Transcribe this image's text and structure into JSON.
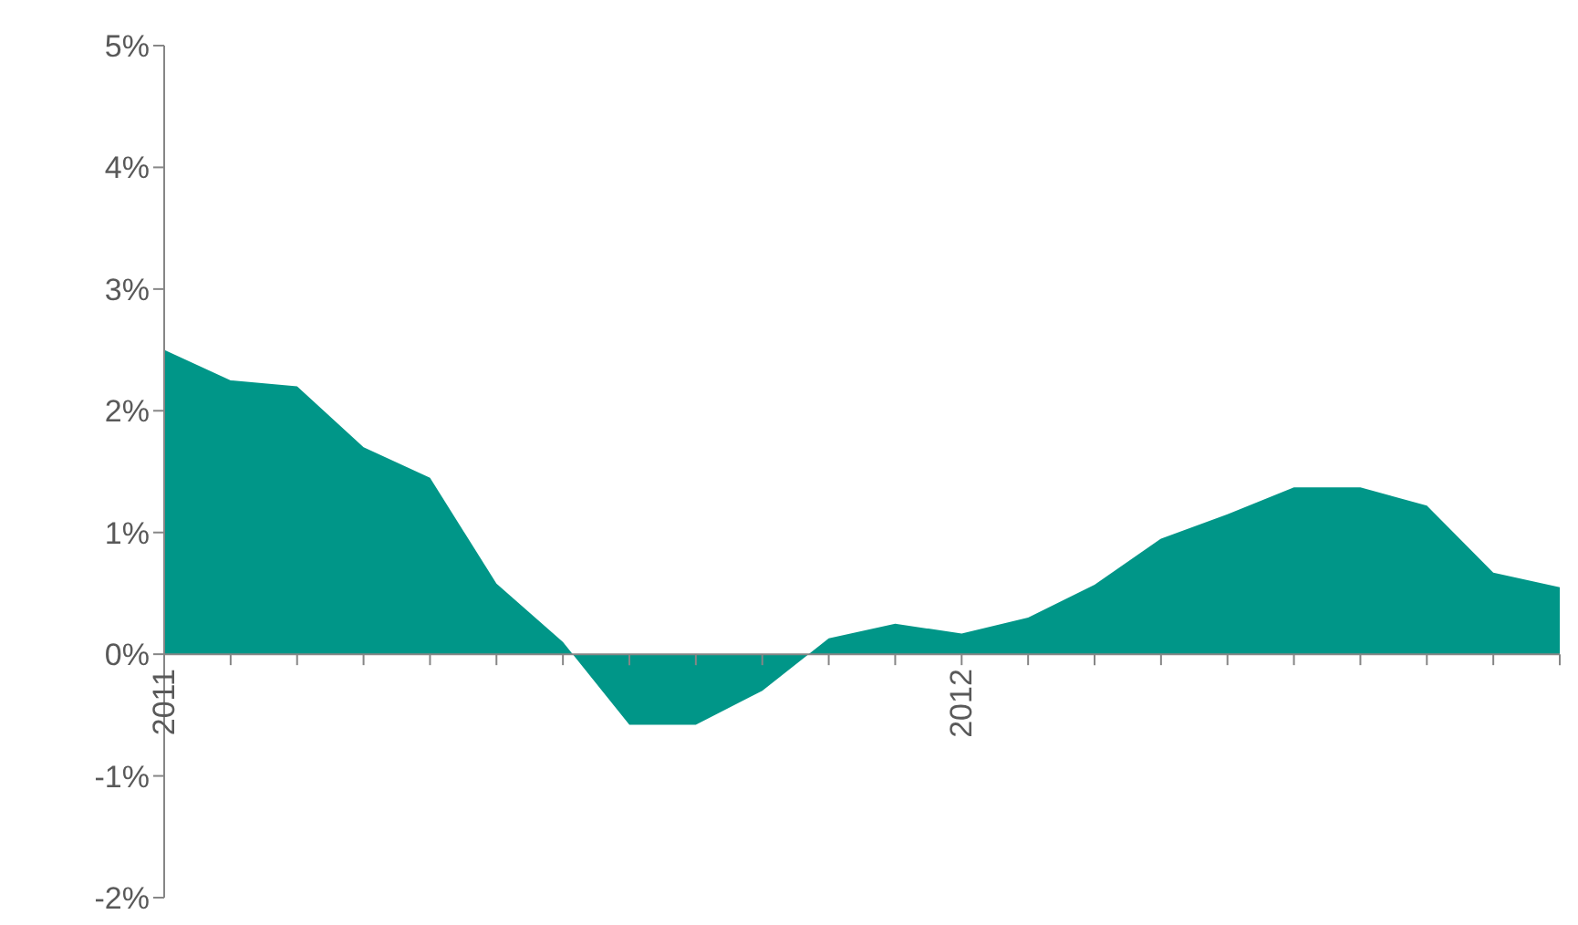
{
  "chart_data": {
    "type": "area",
    "x": [
      "2011-01",
      "2011-02",
      "2011-03",
      "2011-04",
      "2011-05",
      "2011-06",
      "2011-07",
      "2011-08",
      "2011-09",
      "2011-10",
      "2011-11",
      "2011-12",
      "2012-01",
      "2012-02",
      "2012-03",
      "2012-04",
      "2012-05",
      "2012-06",
      "2012-07",
      "2012-08",
      "2012-09",
      "2012-10"
    ],
    "series": [
      {
        "color": "#009688",
        "values": [
          2.5,
          2.25,
          2.2,
          1.7,
          1.45,
          0.58,
          0.1,
          -0.58,
          -0.58,
          -0.3,
          0.13,
          0.25,
          0.17,
          0.3,
          0.57,
          0.95,
          1.15,
          1.37,
          1.37,
          1.22,
          0.67,
          0.55
        ]
      }
    ],
    "xlim": [
      "2011-01",
      "2012-10"
    ],
    "xticks": [
      {
        "value": "2011-01",
        "label": "2011"
      },
      {
        "value": "2011-02",
        "label": null
      },
      {
        "value": "2011-03",
        "label": null
      },
      {
        "value": "2011-04",
        "label": null
      },
      {
        "value": "2011-05",
        "label": null
      },
      {
        "value": "2011-06",
        "label": null
      },
      {
        "value": "2011-07",
        "label": null
      },
      {
        "value": "2011-08",
        "label": null
      },
      {
        "value": "2011-09",
        "label": null
      },
      {
        "value": "2011-10",
        "label": null
      },
      {
        "value": "2011-11",
        "label": null
      },
      {
        "value": "2011-12",
        "label": null
      },
      {
        "value": "2012-01",
        "label": "2012"
      },
      {
        "value": "2012-02",
        "label": null
      },
      {
        "value": "2012-03",
        "label": null
      },
      {
        "value": "2012-04",
        "label": null
      },
      {
        "value": "2012-05",
        "label": null
      },
      {
        "value": "2012-06",
        "label": null
      },
      {
        "value": "2012-07",
        "label": null
      },
      {
        "value": "2012-08",
        "label": null
      },
      {
        "value": "2012-09",
        "label": null
      },
      {
        "value": "2012-10",
        "label": null
      }
    ],
    "ylim": [
      -2,
      5
    ],
    "yticks": [
      {
        "value": -2,
        "label": "-2%"
      },
      {
        "value": -1,
        "label": "-1%"
      },
      {
        "value": 0,
        "label": "0%"
      },
      {
        "value": 1,
        "label": "1%"
      },
      {
        "value": 2,
        "label": "2%"
      },
      {
        "value": 3,
        "label": "3%"
      },
      {
        "value": 4,
        "label": "4%"
      },
      {
        "value": 5,
        "label": "5%"
      }
    ],
    "grid": false,
    "legend": false
  }
}
